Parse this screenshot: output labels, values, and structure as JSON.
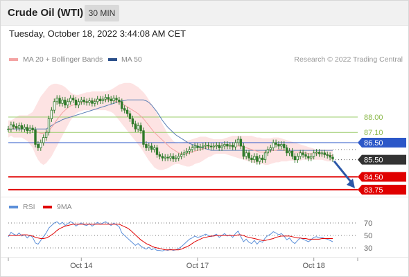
{
  "header": {
    "instrument": "Crude Oil (WTI)",
    "timeframe": "30 MIN"
  },
  "timestamp": "Tuesday, October 18, 2022 3:44:08 AM CET",
  "legend": {
    "ma20_label": "MA 20 + Bollinger Bands",
    "ma50_label": "MA 50",
    "credit": "Research © 2022 Trading Central",
    "rsi_label": "RSI",
    "rsi_ma_label": "9MA"
  },
  "colors": {
    "bollinger_fill": "#fde3e3",
    "ma20": "#f4a3a3",
    "ma50": "#5b7fb5",
    "candle": "#2f7a2a",
    "bullish_line": "#9bcc6a",
    "support_red": "#e00000",
    "pivot_blue": "#2b57c8",
    "current_dark": "#333333",
    "arrow": "#2b57a8",
    "rsi": "#5b8fd9",
    "rsi_ma": "#e00000"
  },
  "chart_data": [
    {
      "type": "candlestick",
      "title": "Crude Oil (WTI)",
      "interval": "30 MIN",
      "x_ticks": [
        "Oct 14",
        "Oct 17",
        "Oct 18"
      ],
      "ylim": [
        83.2,
        89.2
      ],
      "current_price": 85.5,
      "levels": [
        {
          "value": 88.0,
          "label": "88.00",
          "kind": "resistance"
        },
        {
          "value": 87.1,
          "label": "87.10",
          "kind": "resistance"
        },
        {
          "value": 86.5,
          "label": "86.50",
          "kind": "pivot"
        },
        {
          "value": 85.5,
          "label": "85.50",
          "kind": "current"
        },
        {
          "value": 84.5,
          "label": "84.50",
          "kind": "support"
        },
        {
          "value": 83.75,
          "label": "83.75",
          "kind": "support"
        }
      ],
      "close": [
        87.3,
        87.55,
        87.45,
        87.35,
        87.5,
        87.3,
        87.4,
        87.2,
        87.35,
        87.25,
        86.4,
        86.2,
        86.5,
        86.8,
        87.1,
        87.9,
        88.4,
        88.9,
        89.1,
        88.8,
        89.0,
        88.7,
        88.9,
        89.1,
        89.0,
        88.7,
        88.9,
        89.0,
        88.9,
        88.85,
        88.95,
        88.8,
        88.9,
        89.05,
        88.95,
        89.05,
        89.15,
        89.05,
        88.95,
        89.1,
        89.0,
        88.9,
        88.5,
        88.4,
        88.2,
        87.9,
        87.6,
        87.3,
        87.5,
        87.2,
        86.4,
        86.2,
        86.3,
        86.1,
        86.2,
        85.8,
        85.7,
        85.6,
        85.65,
        85.6,
        85.7,
        85.55,
        85.6,
        85.7,
        85.8,
        85.9,
        86.0,
        86.1,
        86.2,
        86.3,
        86.2,
        86.25,
        86.3,
        86.35,
        86.3,
        86.25,
        86.3,
        86.35,
        86.2,
        86.3,
        86.4,
        86.3,
        86.35,
        86.25,
        86.5,
        86.7,
        86.3,
        85.7,
        85.9,
        85.6,
        85.5,
        85.7,
        85.4,
        85.6,
        85.5,
        85.9,
        86.1,
        86.2,
        86.5,
        86.4,
        86.3,
        86.4,
        86.2,
        85.9,
        86.0,
        85.7,
        85.5,
        85.7,
        85.9,
        85.8,
        85.7,
        85.6,
        85.7,
        85.9,
        85.95,
        85.85,
        85.9,
        85.8,
        85.75,
        85.65,
        85.55
      ],
      "ma20": [
        87.3,
        87.35,
        87.35,
        87.4,
        87.45,
        87.45,
        87.4,
        87.35,
        87.3,
        87.25,
        87.2,
        87.1,
        87.05,
        87.05,
        87.1,
        87.2,
        87.4,
        87.6,
        87.85,
        88.05,
        88.25,
        88.4,
        88.55,
        88.65,
        88.7,
        88.75,
        88.8,
        88.85,
        88.9,
        88.9,
        88.9,
        88.95,
        88.95,
        88.95,
        89.0,
        89.0,
        89.0,
        89.0,
        89.0,
        88.95,
        88.9,
        88.85,
        88.8,
        88.7,
        88.6,
        88.5,
        88.4,
        88.3,
        88.2,
        88.05,
        87.9,
        87.7,
        87.5,
        87.3,
        87.1,
        86.95,
        86.8,
        86.65,
        86.5,
        86.35,
        86.2,
        86.1,
        86.0,
        85.9,
        85.85,
        85.85,
        85.85,
        85.9,
        85.95,
        86.0,
        86.05,
        86.1,
        86.15,
        86.2,
        86.25,
        86.25,
        86.3,
        86.3,
        86.3,
        86.3,
        86.3,
        86.3,
        86.3,
        86.3,
        86.3,
        86.3,
        86.3,
        86.25,
        86.2,
        86.15,
        86.1,
        86.05,
        86.0,
        85.95,
        85.95,
        85.95,
        86.0,
        86.0,
        86.05,
        86.05,
        86.1,
        86.1,
        86.05,
        86.05,
        86.0,
        86.0,
        85.95,
        85.95,
        85.95,
        85.9,
        85.9,
        85.85,
        85.85,
        85.85,
        85.85,
        85.85,
        85.85,
        85.8,
        85.8,
        85.75,
        85.75
      ],
      "bb_upper": [
        87.8,
        87.8,
        87.9,
        88.0,
        88.1,
        88.1,
        88.1,
        88.1,
        88.2,
        88.3,
        88.6,
        88.9,
        89.2,
        89.4,
        89.6,
        89.8,
        89.9,
        89.95,
        89.95,
        89.9,
        89.85,
        89.75,
        89.6,
        89.45,
        89.35,
        89.3,
        89.3,
        89.35,
        89.4,
        89.45,
        89.45,
        89.5,
        89.5,
        89.5,
        89.5,
        89.5,
        89.5,
        89.55,
        89.6,
        89.7,
        89.8,
        89.9,
        89.95,
        90.0,
        90.0,
        90.0,
        89.95,
        89.85,
        89.75,
        89.6,
        89.45,
        89.25,
        89.0,
        88.75,
        88.5,
        88.2,
        87.9,
        87.6,
        87.3,
        87.0,
        86.8,
        86.6,
        86.5,
        86.45,
        86.5,
        86.55,
        86.6,
        86.65,
        86.7,
        86.75,
        86.8,
        86.85,
        86.85,
        86.85,
        86.8,
        86.75,
        86.7,
        86.7,
        86.7,
        86.7,
        86.75,
        86.8,
        86.85,
        86.9,
        86.9,
        86.9,
        86.9,
        86.9,
        86.9,
        86.9,
        86.9,
        86.85,
        86.8,
        86.8,
        86.75,
        86.75,
        86.75,
        86.75,
        86.8,
        86.8,
        86.8,
        86.75,
        86.7,
        86.65,
        86.6,
        86.55,
        86.5,
        86.45,
        86.4,
        86.35,
        86.3,
        86.25,
        86.2,
        86.15,
        86.1,
        86.1,
        86.1,
        86.1,
        86.1,
        86.1,
        86.1
      ],
      "bb_lower": [
        86.8,
        86.9,
        86.8,
        86.8,
        86.8,
        86.8,
        86.7,
        86.6,
        86.4,
        86.2,
        85.8,
        85.5,
        85.3,
        85.2,
        85.3,
        85.5,
        85.7,
        86.0,
        86.3,
        86.6,
        86.9,
        87.2,
        87.5,
        87.8,
        88.0,
        88.2,
        88.3,
        88.35,
        88.4,
        88.4,
        88.4,
        88.4,
        88.4,
        88.4,
        88.4,
        88.4,
        88.4,
        88.35,
        88.3,
        88.2,
        88.0,
        87.8,
        87.6,
        87.4,
        87.2,
        87.0,
        86.8,
        86.6,
        86.4,
        86.2,
        85.95,
        85.7,
        85.45,
        85.25,
        85.05,
        84.95,
        84.9,
        84.9,
        84.95,
        85.0,
        85.1,
        85.2,
        85.25,
        85.25,
        85.2,
        85.15,
        85.1,
        85.1,
        85.15,
        85.25,
        85.3,
        85.35,
        85.45,
        85.55,
        85.65,
        85.7,
        85.8,
        85.85,
        85.85,
        85.85,
        85.85,
        85.8,
        85.75,
        85.7,
        85.65,
        85.6,
        85.55,
        85.5,
        85.45,
        85.4,
        85.35,
        85.3,
        85.3,
        85.25,
        85.25,
        85.2,
        85.2,
        85.25,
        85.3,
        85.35,
        85.35,
        85.4,
        85.4,
        85.4,
        85.45,
        85.45,
        85.45,
        85.45,
        85.45,
        85.5,
        85.5,
        85.5,
        85.5,
        85.5,
        85.5,
        85.5,
        85.5,
        85.45,
        85.4,
        85.4,
        85.4
      ],
      "ma50": [
        87.3,
        87.3,
        87.3,
        87.3,
        87.3,
        87.3,
        87.3,
        87.3,
        87.3,
        87.3,
        87.3,
        87.3,
        87.3,
        87.3,
        87.3,
        87.4,
        87.5,
        87.6,
        87.7,
        87.75,
        87.85,
        87.9,
        87.95,
        88.0,
        88.05,
        88.1,
        88.15,
        88.2,
        88.25,
        88.3,
        88.35,
        88.4,
        88.45,
        88.5,
        88.55,
        88.6,
        88.65,
        88.7,
        88.75,
        88.8,
        88.85,
        88.9,
        88.95,
        88.97,
        89.0,
        89.0,
        89.0,
        89.0,
        89.0,
        89.0,
        89.0,
        88.95,
        88.85,
        88.7,
        88.5,
        88.3,
        88.05,
        87.8,
        87.6,
        87.4,
        87.25,
        87.1,
        86.95,
        86.85,
        86.75,
        86.65,
        86.55,
        86.45,
        86.4,
        86.35,
        86.3,
        86.25,
        86.2,
        86.15,
        86.1,
        86.05,
        86.05,
        86.05,
        86.05,
        86.05,
        86.05,
        86.05,
        86.05,
        86.05,
        86.05,
        86.05,
        86.05,
        86.05,
        86.05,
        86.05,
        86.05,
        86.05,
        86.05,
        86.05,
        86.05,
        86.05,
        86.05,
        86.05,
        86.05,
        86.05,
        86.05,
        86.05,
        86.05,
        86.05,
        86.05,
        86.05,
        86.05,
        86.05,
        86.05,
        86.05,
        86.05,
        86.05,
        86.05,
        86.05,
        86.05,
        86.05,
        86.05,
        86.05,
        86.05,
        86.05,
        86.05
      ],
      "projection": {
        "from": 85.5,
        "to": 83.75
      }
    },
    {
      "type": "line",
      "title": "RSI",
      "y_ticks": [
        "70",
        "50",
        "30"
      ],
      "ylim": [
        20,
        80
      ],
      "series": [
        {
          "name": "RSI",
          "values": [
            48,
            55,
            52,
            50,
            54,
            49,
            51,
            46,
            50,
            47,
            38,
            36,
            42,
            48,
            54,
            62,
            66,
            70,
            72,
            68,
            71,
            66,
            69,
            72,
            70,
            65,
            68,
            70,
            67,
            66,
            69,
            65,
            68,
            71,
            68,
            70,
            72,
            69,
            66,
            70,
            67,
            64,
            54,
            50,
            46,
            42,
            38,
            34,
            37,
            33,
            30,
            28,
            31,
            27,
            29,
            26,
            26,
            25,
            27,
            26,
            28,
            26,
            27,
            29,
            32,
            36,
            40,
            44,
            46,
            49,
            47,
            48,
            50,
            52,
            50,
            48,
            50,
            52,
            47,
            50,
            53,
            49,
            51,
            47,
            53,
            57,
            48,
            40,
            44,
            39,
            37,
            42,
            36,
            41,
            39,
            46,
            50,
            52,
            56,
            54,
            51,
            53,
            49,
            43,
            46,
            40,
            37,
            42,
            46,
            44,
            42,
            40,
            43,
            47,
            48,
            46,
            47,
            45,
            44,
            42,
            40
          ]
        },
        {
          "name": "9MA",
          "values": [
            50,
            50,
            50,
            50,
            50,
            51,
            51,
            51,
            50,
            49,
            47,
            46,
            45,
            45,
            46,
            48,
            51,
            54,
            58,
            61,
            63,
            65,
            66,
            67,
            68,
            68,
            68,
            68,
            68,
            68,
            68,
            68,
            68,
            68,
            68,
            68,
            68,
            68,
            68,
            68,
            68,
            68,
            66,
            64,
            62,
            59,
            55,
            51,
            47,
            43,
            40,
            37,
            35,
            33,
            31,
            30,
            29,
            28,
            27,
            27,
            27,
            27,
            27,
            27,
            28,
            30,
            32,
            34,
            37,
            40,
            42,
            44,
            46,
            47,
            48,
            49,
            49,
            50,
            50,
            50,
            50,
            50,
            50,
            50,
            50,
            51,
            51,
            50,
            48,
            47,
            46,
            45,
            44,
            43,
            42,
            42,
            43,
            44,
            45,
            47,
            48,
            49,
            49,
            49,
            49,
            48,
            47,
            46,
            46,
            45,
            45,
            44,
            44,
            44,
            44,
            44,
            45,
            45,
            45,
            45,
            45
          ]
        }
      ]
    }
  ]
}
